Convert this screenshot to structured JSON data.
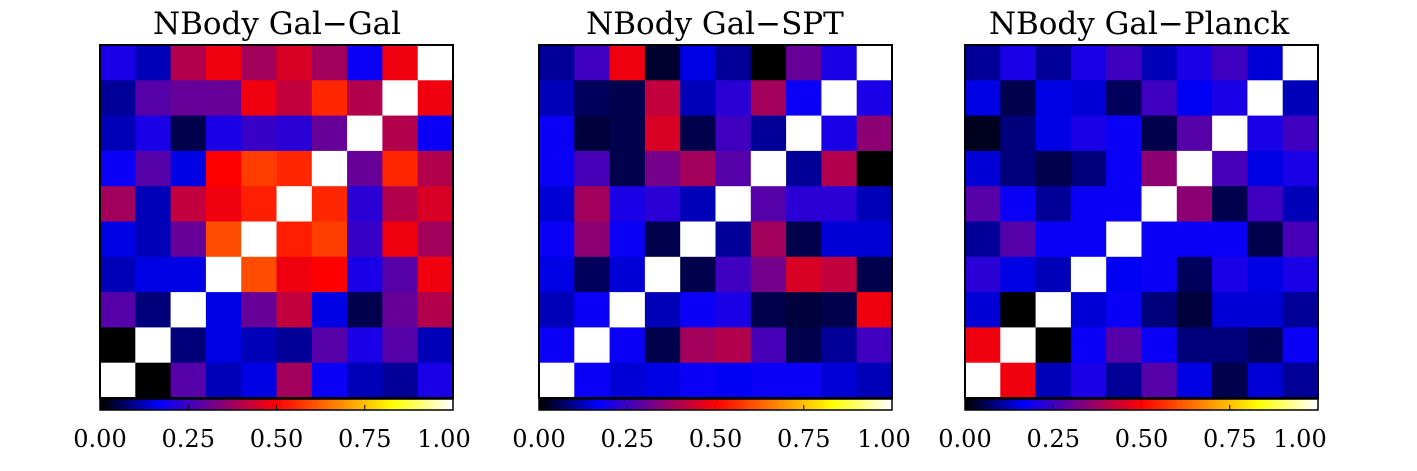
{
  "colors": {
    "background": "#ffffff",
    "colormap": [
      "#000000",
      "#0000ff",
      "#7f0080",
      "#ff0000",
      "#ff8000",
      "#ffff00",
      "#ffffff"
    ]
  },
  "chart_data": [
    {
      "type": "heatmap",
      "title": "NBody Gal−Gal",
      "colorbar": {
        "range": [
          0.0,
          1.0
        ],
        "tick_labels": [
          "0.00",
          "0.25",
          "0.50",
          "0.75",
          "1.00"
        ]
      },
      "grid": false,
      "values": [
        [
          0.2,
          0.12,
          0.4,
          0.48,
          0.38,
          0.45,
          0.38,
          0.18,
          0.48,
          1.0
        ],
        [
          0.1,
          0.28,
          0.3,
          0.3,
          0.48,
          0.42,
          0.55,
          0.4,
          1.0,
          0.48
        ],
        [
          0.12,
          0.2,
          0.05,
          0.2,
          0.24,
          0.22,
          0.3,
          1.0,
          0.4,
          0.18
        ],
        [
          0.18,
          0.28,
          0.15,
          0.5,
          0.58,
          0.55,
          1.0,
          0.3,
          0.55,
          0.4
        ],
        [
          0.38,
          0.12,
          0.42,
          0.48,
          0.54,
          1.0,
          0.55,
          0.22,
          0.4,
          0.45
        ],
        [
          0.15,
          0.12,
          0.3,
          0.6,
          1.0,
          0.54,
          0.58,
          0.24,
          0.48,
          0.38
        ],
        [
          0.12,
          0.15,
          0.15,
          1.0,
          0.6,
          0.48,
          0.5,
          0.2,
          0.28,
          0.48
        ],
        [
          0.28,
          0.08,
          1.0,
          0.15,
          0.3,
          0.42,
          0.15,
          0.05,
          0.3,
          0.4
        ],
        [
          0.0,
          1.0,
          0.08,
          0.15,
          0.12,
          0.1,
          0.28,
          0.2,
          0.28,
          0.12
        ],
        [
          1.0,
          0.0,
          0.28,
          0.12,
          0.15,
          0.38,
          0.18,
          0.12,
          0.1,
          0.2
        ]
      ]
    },
    {
      "type": "heatmap",
      "title": "NBody Gal−SPT",
      "colorbar": {
        "range": [
          0.0,
          1.0
        ],
        "tick_labels": [
          "0.00",
          "0.25",
          "0.50",
          "0.75",
          "1.00"
        ]
      },
      "grid": false,
      "values": [
        [
          0.1,
          0.25,
          0.48,
          0.03,
          0.15,
          0.1,
          0.0,
          0.3,
          0.2,
          1.0
        ],
        [
          0.12,
          0.06,
          0.05,
          0.42,
          0.12,
          0.22,
          0.38,
          0.18,
          1.0,
          0.2
        ],
        [
          0.18,
          0.04,
          0.05,
          0.45,
          0.05,
          0.25,
          0.1,
          1.0,
          0.2,
          0.35
        ],
        [
          0.18,
          0.26,
          0.05,
          0.32,
          0.38,
          0.28,
          1.0,
          0.1,
          0.4,
          0.0
        ],
        [
          0.14,
          0.38,
          0.2,
          0.22,
          0.12,
          1.0,
          0.28,
          0.22,
          0.22,
          0.12
        ],
        [
          0.18,
          0.35,
          0.18,
          0.05,
          1.0,
          0.1,
          0.38,
          0.05,
          0.14,
          0.14
        ],
        [
          0.15,
          0.06,
          0.14,
          1.0,
          0.05,
          0.25,
          0.32,
          0.45,
          0.42,
          0.05
        ],
        [
          0.12,
          0.18,
          1.0,
          0.12,
          0.18,
          0.2,
          0.05,
          0.04,
          0.05,
          0.48
        ],
        [
          0.18,
          1.0,
          0.18,
          0.05,
          0.38,
          0.4,
          0.26,
          0.05,
          0.1,
          0.25
        ],
        [
          1.0,
          0.18,
          0.14,
          0.15,
          0.18,
          0.16,
          0.18,
          0.18,
          0.14,
          0.12
        ]
      ]
    },
    {
      "type": "heatmap",
      "title": "NBody Gal−Planck",
      "colorbar": {
        "range": [
          0.0,
          1.0
        ],
        "tick_labels": [
          "0.00",
          "0.25",
          "0.50",
          "0.75",
          "1.00"
        ]
      },
      "grid": false,
      "values": [
        [
          0.1,
          0.2,
          0.1,
          0.2,
          0.25,
          0.12,
          0.2,
          0.25,
          0.14,
          1.0
        ],
        [
          0.15,
          0.05,
          0.15,
          0.14,
          0.06,
          0.25,
          0.16,
          0.2,
          1.0,
          0.12
        ],
        [
          0.02,
          0.08,
          0.15,
          0.2,
          0.18,
          0.05,
          0.28,
          1.0,
          0.2,
          0.25
        ],
        [
          0.14,
          0.08,
          0.05,
          0.08,
          0.18,
          0.35,
          1.0,
          0.26,
          0.15,
          0.2
        ],
        [
          0.28,
          0.18,
          0.1,
          0.18,
          0.18,
          1.0,
          0.35,
          0.05,
          0.25,
          0.12
        ],
        [
          0.1,
          0.28,
          0.18,
          0.18,
          1.0,
          0.18,
          0.18,
          0.18,
          0.05,
          0.26
        ],
        [
          0.22,
          0.15,
          0.12,
          1.0,
          0.16,
          0.18,
          0.06,
          0.2,
          0.15,
          0.2
        ],
        [
          0.14,
          0.0,
          1.0,
          0.14,
          0.18,
          0.08,
          0.04,
          0.14,
          0.14,
          0.1
        ],
        [
          0.48,
          1.0,
          0.0,
          0.18,
          0.28,
          0.18,
          0.08,
          0.08,
          0.06,
          0.18
        ],
        [
          1.0,
          0.48,
          0.12,
          0.2,
          0.1,
          0.28,
          0.15,
          0.05,
          0.14,
          0.1
        ]
      ]
    }
  ]
}
